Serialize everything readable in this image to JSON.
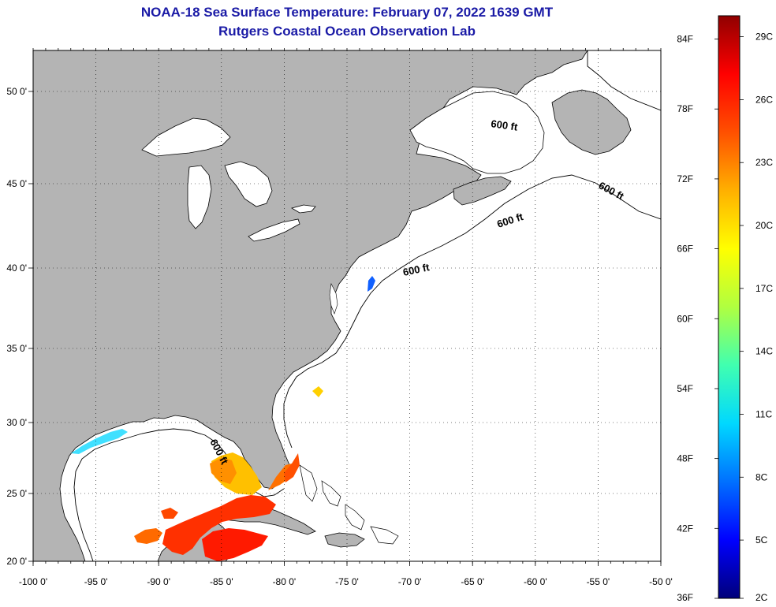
{
  "header": {
    "title": "NOAA-18 Sea Surface Temperature:  February 07, 2022 1639 GMT",
    "subtitle": "Rutgers Coastal Ocean Observation Lab"
  },
  "map": {
    "lon_labels": [
      "-100 0'",
      "-95 0'",
      "-90 0'",
      "-85 0'",
      "-80 0'",
      "-75 0'",
      "-70 0'",
      "-65 0'",
      "-60 0'",
      "-55 0'",
      "-50 0'"
    ],
    "lat_labels": [
      "20 0'",
      "25 0'",
      "30 0'",
      "35 0'",
      "40 0'",
      "45 0'",
      "50 0'"
    ],
    "contour_label": "600 ft",
    "colors": {
      "land": "#b4b4b4",
      "ocean": "#ffffff",
      "coast": "#000000"
    }
  },
  "colorbar": {
    "f_labels": [
      "84F",
      "78F",
      "72F",
      "66F",
      "60F",
      "54F",
      "48F",
      "42F",
      "36F"
    ],
    "c_labels": [
      "29C",
      "26C",
      "23C",
      "20C",
      "17C",
      "14C",
      "11C",
      "8C",
      "5C",
      "2C"
    ],
    "gradient": [
      "#00007a",
      "#0000ff",
      "#0070ff",
      "#00d8ff",
      "#40ffb0",
      "#b0ff40",
      "#ffff00",
      "#ffb000",
      "#ff5000",
      "#ff0000",
      "#900000"
    ]
  }
}
